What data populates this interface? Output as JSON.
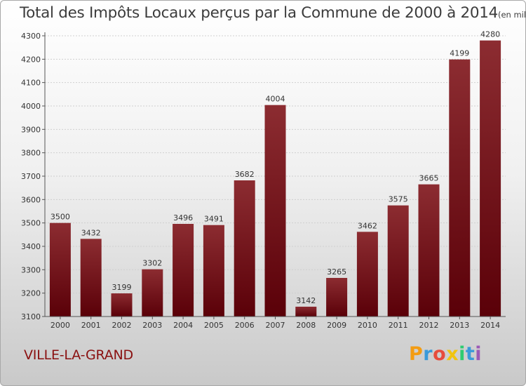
{
  "title": "Total des Impôts Locaux perçus par la Commune de 2000 à 2014",
  "title_unit": "(en milliers d'€)",
  "commune": "VILLE-LA-GRAND",
  "brand": {
    "letters": [
      "P",
      "r",
      "o",
      "x",
      "i",
      "t",
      "i"
    ],
    "colors": [
      "#f39c12",
      "#3a9ad9",
      "#e74c3c",
      "#f1c40f",
      "#2ecc71",
      "#3a9ad9",
      "#9b59b6"
    ]
  },
  "colors": {
    "bar_top": "#8c2c31",
    "bar_bottom": "#5a0008",
    "axis": "#555555",
    "grid": "#cfcfcf",
    "commune_text": "#8a1010"
  },
  "chart_data": {
    "type": "bar",
    "title": "Total des Impôts Locaux perçus par la Commune de 2000 à 2014",
    "categories": [
      "2000",
      "2001",
      "2002",
      "2003",
      "2004",
      "2005",
      "2006",
      "2007",
      "2008",
      "2009",
      "2010",
      "2011",
      "2012",
      "2013",
      "2014"
    ],
    "values": [
      3500,
      3432,
      3199,
      3302,
      3496,
      3491,
      3682,
      4004,
      3142,
      3265,
      3462,
      3575,
      3665,
      4199,
      4280
    ],
    "ylim": [
      3100,
      4300
    ],
    "yticks": [
      3100,
      3200,
      3300,
      3400,
      3500,
      3600,
      3700,
      3800,
      3900,
      4000,
      4100,
      4200,
      4300
    ],
    "xlabel": "",
    "ylabel": "",
    "grid": true,
    "grid_axis": "y",
    "data_labels": true
  }
}
